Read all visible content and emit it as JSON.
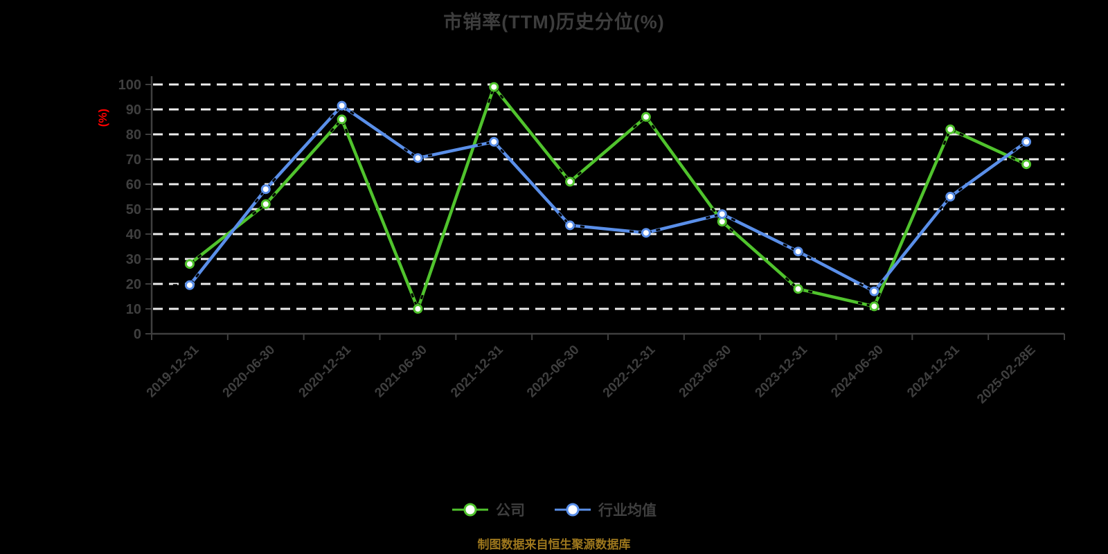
{
  "title": "市销率(TTM)历史分位(%)",
  "y_axis_unit": "(%)",
  "footer_note": "制图数据来自恒生聚源数据库",
  "colors": {
    "background": "#000000",
    "title_text": "#3d3d3d",
    "axis_line": "#3f3f3f",
    "tick_label": "#3f3f3f",
    "gridline": "#ededed",
    "company_series": "#50c32d",
    "industry_series": "#5a8fe9",
    "marker_fill": "#ffffff",
    "vertex_dash": "#000000",
    "unit_label": "#fe0000",
    "footer_text": "#9d771d"
  },
  "legend": {
    "items": [
      {
        "label": "公司",
        "color": "#50c32d"
      },
      {
        "label": "行业均值",
        "color": "#5a8fe9"
      }
    ]
  },
  "chart_data": {
    "type": "line",
    "title": "市销率(TTM)历史分位(%)",
    "categories": [
      "2019-12-31",
      "2020-06-30",
      "2020-12-31",
      "2021-06-30",
      "2021-12-31",
      "2022-06-30",
      "2022-12-31",
      "2023-06-30",
      "2023-12-31",
      "2024-06-30",
      "2024-12-31",
      "2025-02-28E"
    ],
    "series": [
      {
        "name": "公司",
        "color": "#50c32d",
        "values": [
          28,
          52,
          86,
          10,
          99,
          61,
          87,
          45,
          18,
          11,
          82,
          68
        ]
      },
      {
        "name": "行业均值",
        "color": "#5a8fe9",
        "values": [
          19.5,
          58,
          91.5,
          70.5,
          77,
          43.5,
          40.5,
          48,
          33,
          17,
          55,
          77
        ]
      }
    ],
    "xlabel": "",
    "ylabel": "(%)",
    "ylim": [
      0,
      100
    ],
    "y_ticks": [
      0,
      10,
      20,
      30,
      40,
      50,
      60,
      70,
      80,
      90,
      100
    ],
    "grid": "horizontal-dashed-white",
    "legend_position": "bottom",
    "marker": "circle-white-fill"
  }
}
